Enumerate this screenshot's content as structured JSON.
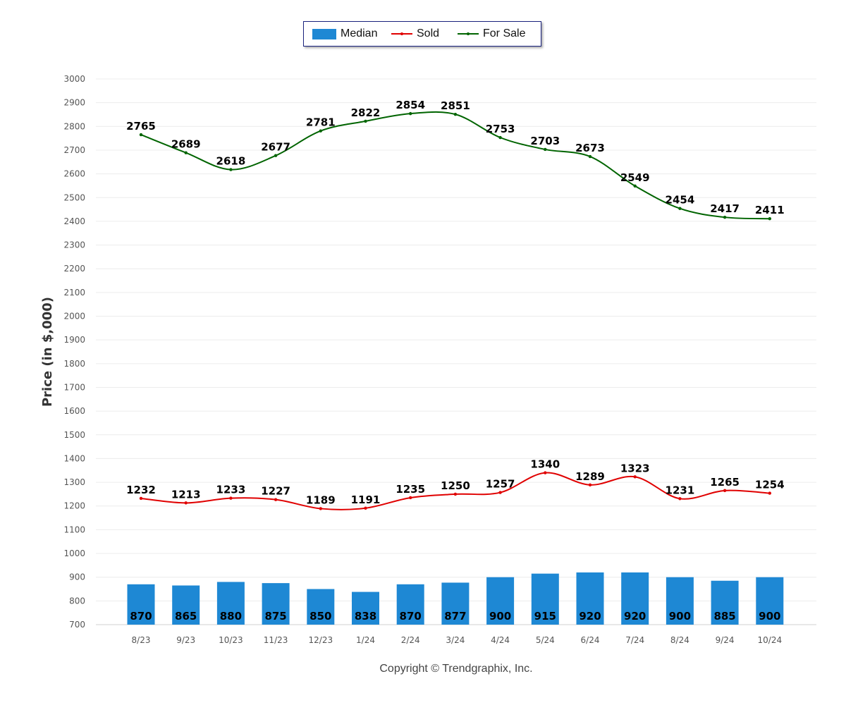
{
  "legend": {
    "median": "Median",
    "sold": "Sold",
    "for_sale": "For Sale"
  },
  "copyright": "Copyright © Trendgraphix, Inc.",
  "colors": {
    "median": "#1e88d4",
    "sold": "#e00000",
    "for_sale": "#006400"
  },
  "chart_data": {
    "type": "bar",
    "ylabel": "Price (in $,000)",
    "ylim": [
      700,
      3000
    ],
    "yticks": [
      700,
      800,
      900,
      1000,
      1100,
      1200,
      1300,
      1400,
      1500,
      1600,
      1700,
      1800,
      1900,
      2000,
      2100,
      2200,
      2300,
      2400,
      2500,
      2600,
      2700,
      2800,
      2900,
      3000
    ],
    "grid": true,
    "legend_position": "top-center",
    "categories": [
      "8/23",
      "9/23",
      "10/23",
      "11/23",
      "12/23",
      "1/24",
      "2/24",
      "3/24",
      "4/24",
      "5/24",
      "6/24",
      "7/24",
      "8/24",
      "9/24",
      "10/24"
    ],
    "series": [
      {
        "name": "Median",
        "type": "bar",
        "values": [
          870,
          865,
          880,
          875,
          850,
          838,
          870,
          877,
          900,
          915,
          920,
          920,
          900,
          885,
          900
        ]
      },
      {
        "name": "Sold",
        "type": "line",
        "values": [
          1232,
          1213,
          1233,
          1227,
          1189,
          1191,
          1235,
          1250,
          1257,
          1340,
          1289,
          1323,
          1231,
          1265,
          1254
        ]
      },
      {
        "name": "For Sale",
        "type": "line",
        "values": [
          2765,
          2689,
          2618,
          2677,
          2781,
          2822,
          2854,
          2851,
          2753,
          2703,
          2673,
          2549,
          2454,
          2417,
          2411
        ]
      }
    ]
  }
}
